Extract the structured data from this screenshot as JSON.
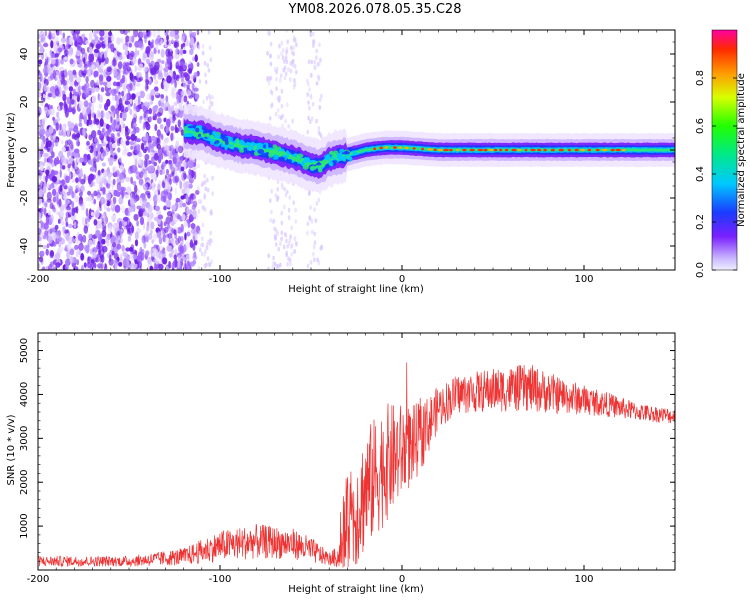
{
  "title": "YM08.2026.078.05.35.C28",
  "colors": {
    "snr_line": "#ee3333",
    "spectrogram_scatter": "#7a2cf0"
  },
  "chart_data": [
    {
      "type": "heatmap",
      "name": "spectrogram",
      "xlabel": "Height of straight line (km)",
      "ylabel": "Frequency (Hz)",
      "xlim": [
        -200,
        150
      ],
      "ylim": [
        -50,
        50
      ],
      "xticks": [
        -200,
        -100,
        0,
        100
      ],
      "yticks": [
        -40,
        -20,
        0,
        20,
        40
      ],
      "ridge": {
        "x": [
          -120,
          -110,
          -100,
          -90,
          -80,
          -70,
          -60,
          -50,
          -45,
          -40,
          -30,
          -20,
          -10,
          0,
          20,
          40,
          60,
          80,
          100,
          120,
          150
        ],
        "y": [
          8,
          7,
          4,
          2,
          1,
          -1,
          -3,
          -6,
          -7,
          -4,
          -2,
          0,
          1,
          1,
          0,
          0,
          0,
          0,
          0,
          0,
          0
        ]
      },
      "colorbar": {
        "label": "Normalized spectral amplitude",
        "range": [
          0.0,
          1.0
        ],
        "ticks": [
          0.0,
          0.2,
          0.4,
          0.6,
          0.8
        ]
      }
    },
    {
      "type": "line",
      "name": "snr",
      "xlabel": "Height of straight line (km)",
      "ylabel": "SNR (10 * v/v)",
      "xlim": [
        -200,
        150
      ],
      "ylim": [
        0,
        5400
      ],
      "xticks": [
        -200,
        -100,
        0,
        100
      ],
      "yticks": [
        1000,
        2000,
        3000,
        4000,
        5000
      ],
      "envelope": {
        "x": [
          -200,
          -150,
          -120,
          -100,
          -80,
          -60,
          -50,
          -40,
          -35,
          -30,
          -20,
          -10,
          0,
          10,
          20,
          30,
          50,
          70,
          90,
          110,
          130,
          150
        ],
        "y": [
          200,
          200,
          300,
          550,
          650,
          600,
          450,
          250,
          300,
          900,
          1800,
          2400,
          2700,
          3000,
          3700,
          4000,
          4100,
          4150,
          3950,
          3800,
          3600,
          3500
        ]
      },
      "noise_amplitude": {
        "x": [
          -200,
          -150,
          -120,
          -100,
          -80,
          -60,
          -50,
          -40,
          -35,
          -30,
          -20,
          -10,
          0,
          10,
          20,
          30,
          50,
          70,
          90,
          110,
          130,
          150
        ],
        "y": [
          120,
          120,
          200,
          350,
          400,
          350,
          300,
          150,
          250,
          1200,
          1400,
          1400,
          1100,
          800,
          500,
          450,
          500,
          550,
          400,
          300,
          200,
          180
        ]
      }
    }
  ]
}
